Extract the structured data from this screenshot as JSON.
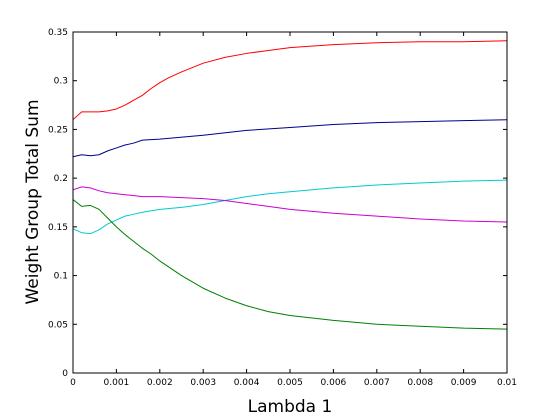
{
  "chart_data": {
    "type": "line",
    "title": "",
    "xlabel": "Lambda 1",
    "ylabel": "Weight Group Total Sum",
    "xlim": [
      0,
      0.01
    ],
    "ylim": [
      0,
      0.35
    ],
    "xticks": [
      0,
      0.001,
      0.002,
      0.003,
      0.004,
      0.005,
      0.006,
      0.007,
      0.008,
      0.009,
      0.01
    ],
    "xtick_labels": [
      "0",
      "0.001",
      "0.002",
      "0.003",
      "0.004",
      "0.005",
      "0.006",
      "0.007",
      "0.008",
      "0.009",
      "0.01"
    ],
    "yticks": [
      0,
      0.05,
      0.1,
      0.15,
      0.2,
      0.25,
      0.3,
      0.35
    ],
    "ytick_labels": [
      "0",
      "0.05",
      "0.1",
      "0.15",
      "0.2",
      "0.25",
      "0.3",
      "0.35"
    ],
    "grid": false,
    "legend": "none",
    "series": [
      {
        "color": "#ff0000",
        "x": [
          0,
          0.0002,
          0.0004,
          0.0006,
          0.0008,
          0.001,
          0.0012,
          0.0014,
          0.0016,
          0.0018,
          0.002,
          0.0022,
          0.0025,
          0.003,
          0.0035,
          0.004,
          0.0045,
          0.005,
          0.006,
          0.007,
          0.008,
          0.009,
          0.01
        ],
        "y": [
          0.26,
          0.268,
          0.268,
          0.268,
          0.269,
          0.271,
          0.275,
          0.28,
          0.285,
          0.292,
          0.298,
          0.303,
          0.309,
          0.318,
          0.324,
          0.328,
          0.331,
          0.334,
          0.337,
          0.339,
          0.34,
          0.34,
          0.341
        ]
      },
      {
        "color": "#00008b",
        "x": [
          0,
          0.0002,
          0.0004,
          0.0006,
          0.0008,
          0.001,
          0.0012,
          0.0014,
          0.0016,
          0.002,
          0.003,
          0.004,
          0.005,
          0.006,
          0.007,
          0.008,
          0.009,
          0.01
        ],
        "y": [
          0.222,
          0.224,
          0.223,
          0.224,
          0.228,
          0.231,
          0.234,
          0.236,
          0.239,
          0.24,
          0.244,
          0.249,
          0.252,
          0.255,
          0.257,
          0.258,
          0.259,
          0.26
        ]
      },
      {
        "color": "#00cccc",
        "x": [
          0,
          0.0002,
          0.0004,
          0.0006,
          0.0008,
          0.001,
          0.0012,
          0.0014,
          0.0016,
          0.002,
          0.0025,
          0.003,
          0.0035,
          0.004,
          0.0045,
          0.005,
          0.006,
          0.007,
          0.008,
          0.009,
          0.01
        ],
        "y": [
          0.148,
          0.144,
          0.143,
          0.147,
          0.153,
          0.157,
          0.161,
          0.163,
          0.165,
          0.168,
          0.17,
          0.173,
          0.177,
          0.181,
          0.184,
          0.186,
          0.19,
          0.193,
          0.195,
          0.197,
          0.198
        ]
      },
      {
        "color": "#cc00cc",
        "x": [
          0,
          0.0002,
          0.0004,
          0.0006,
          0.0008,
          0.001,
          0.0012,
          0.0014,
          0.0016,
          0.002,
          0.0025,
          0.003,
          0.0035,
          0.004,
          0.0045,
          0.005,
          0.006,
          0.007,
          0.008,
          0.009,
          0.01
        ],
        "y": [
          0.188,
          0.191,
          0.19,
          0.187,
          0.185,
          0.184,
          0.183,
          0.182,
          0.181,
          0.181,
          0.18,
          0.179,
          0.177,
          0.174,
          0.171,
          0.168,
          0.164,
          0.161,
          0.158,
          0.156,
          0.155
        ]
      },
      {
        "color": "#008000",
        "x": [
          0,
          0.0002,
          0.0004,
          0.0006,
          0.0008,
          0.001,
          0.0012,
          0.0014,
          0.0016,
          0.0018,
          0.002,
          0.0025,
          0.003,
          0.0035,
          0.004,
          0.0045,
          0.005,
          0.006,
          0.007,
          0.008,
          0.009,
          0.01
        ],
        "y": [
          0.178,
          0.171,
          0.172,
          0.168,
          0.159,
          0.15,
          0.142,
          0.135,
          0.128,
          0.122,
          0.115,
          0.1,
          0.087,
          0.077,
          0.069,
          0.063,
          0.059,
          0.054,
          0.05,
          0.048,
          0.046,
          0.045
        ]
      }
    ]
  }
}
